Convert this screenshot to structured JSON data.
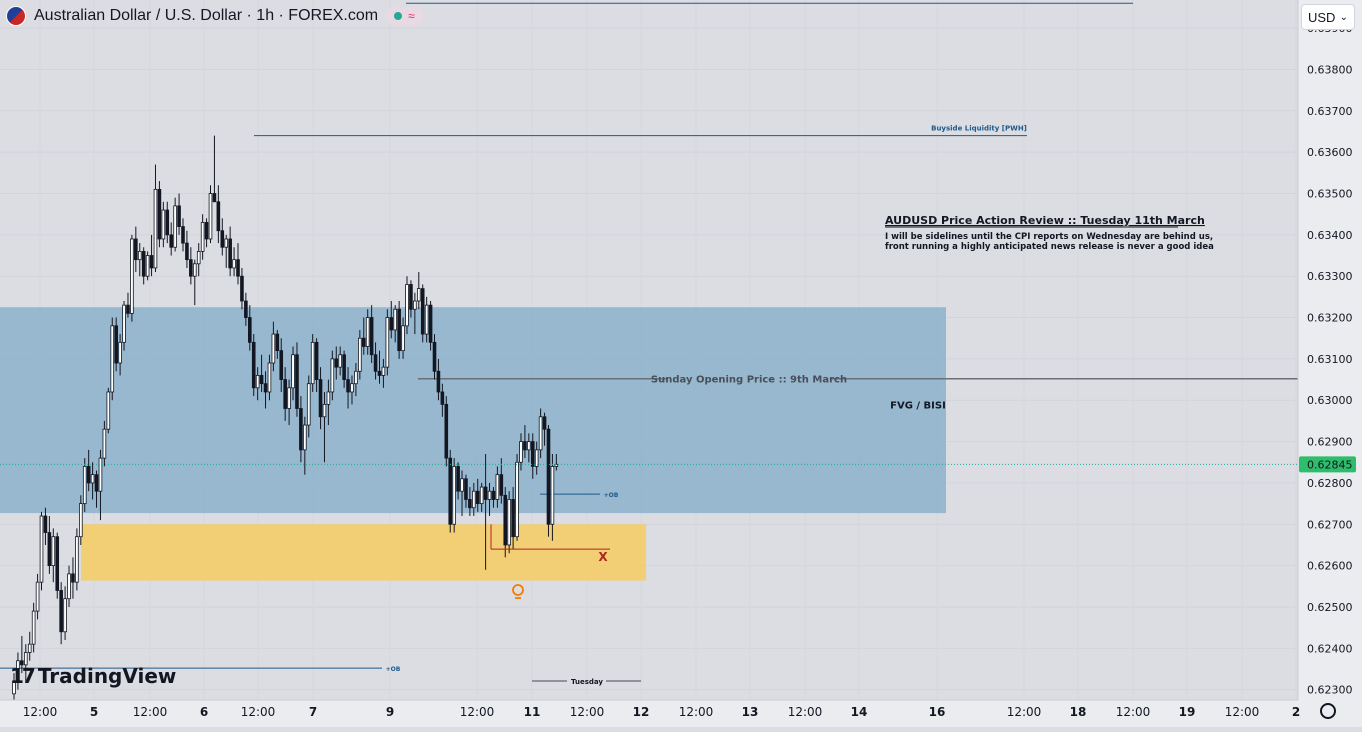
{
  "header": {
    "title": "Australian Dollar / U.S. Dollar · 1h · FOREX.com",
    "currency": "USD",
    "brand": "TradingView"
  },
  "chart_data": {
    "type": "candlestick",
    "price_axis": {
      "min": 0.62275,
      "max": 0.63968,
      "ticks": [
        "0.63900",
        "0.63800",
        "0.63700",
        "0.63600",
        "0.63500",
        "0.63400",
        "0.63300",
        "0.63200",
        "0.63100",
        "0.63000",
        "0.62900",
        "0.62800",
        "0.62700",
        "0.62600",
        "0.62500",
        "0.62400",
        "0.62300"
      ],
      "last_price": "0.62845"
    },
    "time_axis": {
      "labels": [
        "12:00",
        "5",
        "12:00",
        "6",
        "12:00",
        "7",
        "9",
        "12:00",
        "11",
        "12:00",
        "12",
        "12:00",
        "13",
        "12:00",
        "14",
        "16",
        "12:00",
        "18",
        "12:00",
        "19",
        "12:00",
        "2"
      ]
    },
    "zones": [
      {
        "name": "FVG / BISI",
        "label": "FVG / BISI",
        "top": 0.63225,
        "bottom": 0.62727,
        "color": "#8fb4cc"
      },
      {
        "name": "order-block-zone",
        "label": "",
        "top": 0.627,
        "bottom": 0.62564,
        "color": "#f2cc6e"
      }
    ],
    "levels": [
      {
        "label": "Buyside Liquidity",
        "price": 0.6396,
        "color": "#2962ff"
      },
      {
        "label": "Buyside Liquidity [PWH]",
        "price": 0.6364,
        "color": "#1e5a8a"
      },
      {
        "label": "Sunday Opening Price :: 9th March",
        "price": 0.63052,
        "color": "#6b6f78"
      },
      {
        "label": "+OB",
        "price": 0.62773,
        "color": "#2962ff"
      },
      {
        "label": "+OB",
        "price": 0.62352,
        "color": "#2962ff"
      }
    ],
    "annotations": {
      "review_title": "AUDUSD Price Action Review :: Tuesday 11th March",
      "review_line1": "I will be sidelines until the CPI reports on Wednesday are behind us,",
      "review_line2": "front running a highly anticipated news release is never a good idea",
      "x_mark": "X",
      "tuesday": "Tuesday"
    },
    "candles": [
      {
        "o": 0.6229,
        "h": 0.6234,
        "l": 0.62275,
        "c": 0.6232
      },
      {
        "o": 0.6232,
        "h": 0.6239,
        "l": 0.623,
        "c": 0.6237
      },
      {
        "o": 0.6237,
        "h": 0.6243,
        "l": 0.6234,
        "c": 0.6236
      },
      {
        "o": 0.6236,
        "h": 0.6241,
        "l": 0.6232,
        "c": 0.6239
      },
      {
        "o": 0.6239,
        "h": 0.6244,
        "l": 0.6237,
        "c": 0.6241
      },
      {
        "o": 0.6241,
        "h": 0.6251,
        "l": 0.6239,
        "c": 0.6249
      },
      {
        "o": 0.6249,
        "h": 0.6258,
        "l": 0.6247,
        "c": 0.6256
      },
      {
        "o": 0.6256,
        "h": 0.6273,
        "l": 0.6254,
        "c": 0.6272
      },
      {
        "o": 0.6272,
        "h": 0.6274,
        "l": 0.6265,
        "c": 0.6268
      },
      {
        "o": 0.6268,
        "h": 0.6272,
        "l": 0.6258,
        "c": 0.626
      },
      {
        "o": 0.626,
        "h": 0.6269,
        "l": 0.6256,
        "c": 0.6267
      },
      {
        "o": 0.6267,
        "h": 0.6268,
        "l": 0.6252,
        "c": 0.6254
      },
      {
        "o": 0.6254,
        "h": 0.6256,
        "l": 0.6241,
        "c": 0.6244
      },
      {
        "o": 0.6244,
        "h": 0.6255,
        "l": 0.6242,
        "c": 0.6252
      },
      {
        "o": 0.6252,
        "h": 0.626,
        "l": 0.625,
        "c": 0.6258
      },
      {
        "o": 0.6258,
        "h": 0.6262,
        "l": 0.6252,
        "c": 0.6256
      },
      {
        "o": 0.6256,
        "h": 0.6269,
        "l": 0.6254,
        "c": 0.6267
      },
      {
        "o": 0.6267,
        "h": 0.6277,
        "l": 0.6265,
        "c": 0.6275
      },
      {
        "o": 0.6275,
        "h": 0.6286,
        "l": 0.6273,
        "c": 0.6284
      },
      {
        "o": 0.6284,
        "h": 0.6288,
        "l": 0.6278,
        "c": 0.628
      },
      {
        "o": 0.628,
        "h": 0.6285,
        "l": 0.6276,
        "c": 0.6282
      },
      {
        "o": 0.6282,
        "h": 0.6283,
        "l": 0.6274,
        "c": 0.6278
      },
      {
        "o": 0.6278,
        "h": 0.6288,
        "l": 0.6271,
        "c": 0.6286
      },
      {
        "o": 0.6286,
        "h": 0.6295,
        "l": 0.6284,
        "c": 0.6293
      },
      {
        "o": 0.6293,
        "h": 0.6303,
        "l": 0.6292,
        "c": 0.6302
      },
      {
        "o": 0.6302,
        "h": 0.632,
        "l": 0.63,
        "c": 0.6318
      },
      {
        "o": 0.6318,
        "h": 0.632,
        "l": 0.6307,
        "c": 0.6309
      },
      {
        "o": 0.6309,
        "h": 0.6316,
        "l": 0.6306,
        "c": 0.6314
      },
      {
        "o": 0.6314,
        "h": 0.6324,
        "l": 0.6312,
        "c": 0.6323
      },
      {
        "o": 0.6323,
        "h": 0.6326,
        "l": 0.632,
        "c": 0.6321
      },
      {
        "o": 0.6321,
        "h": 0.634,
        "l": 0.6319,
        "c": 0.6339
      },
      {
        "o": 0.6339,
        "h": 0.6342,
        "l": 0.6331,
        "c": 0.6334
      },
      {
        "o": 0.6334,
        "h": 0.6338,
        "l": 0.633,
        "c": 0.6336
      },
      {
        "o": 0.6336,
        "h": 0.6337,
        "l": 0.6328,
        "c": 0.633
      },
      {
        "o": 0.633,
        "h": 0.6336,
        "l": 0.6329,
        "c": 0.6335
      },
      {
        "o": 0.6335,
        "h": 0.634,
        "l": 0.633,
        "c": 0.6332
      },
      {
        "o": 0.6332,
        "h": 0.6357,
        "l": 0.6331,
        "c": 0.6351
      },
      {
        "o": 0.6351,
        "h": 0.6353,
        "l": 0.6337,
        "c": 0.6339
      },
      {
        "o": 0.6339,
        "h": 0.6348,
        "l": 0.6337,
        "c": 0.6346
      },
      {
        "o": 0.6346,
        "h": 0.6348,
        "l": 0.6338,
        "c": 0.634
      },
      {
        "o": 0.634,
        "h": 0.6343,
        "l": 0.6335,
        "c": 0.6337
      },
      {
        "o": 0.6337,
        "h": 0.6349,
        "l": 0.6336,
        "c": 0.6347
      },
      {
        "o": 0.6347,
        "h": 0.635,
        "l": 0.634,
        "c": 0.6342
      },
      {
        "o": 0.6342,
        "h": 0.6344,
        "l": 0.6336,
        "c": 0.6338
      },
      {
        "o": 0.6338,
        "h": 0.6341,
        "l": 0.6332,
        "c": 0.6334
      },
      {
        "o": 0.6334,
        "h": 0.6337,
        "l": 0.6328,
        "c": 0.633
      },
      {
        "o": 0.633,
        "h": 0.6334,
        "l": 0.6323,
        "c": 0.6333
      },
      {
        "o": 0.6333,
        "h": 0.6338,
        "l": 0.633,
        "c": 0.6336
      },
      {
        "o": 0.6336,
        "h": 0.6345,
        "l": 0.6334,
        "c": 0.6343
      },
      {
        "o": 0.6343,
        "h": 0.6344,
        "l": 0.6337,
        "c": 0.6339
      },
      {
        "o": 0.6339,
        "h": 0.6352,
        "l": 0.6338,
        "c": 0.635
      },
      {
        "o": 0.635,
        "h": 0.6364,
        "l": 0.6348,
        "c": 0.6348
      },
      {
        "o": 0.6348,
        "h": 0.6352,
        "l": 0.6338,
        "c": 0.6341
      },
      {
        "o": 0.6341,
        "h": 0.6344,
        "l": 0.6335,
        "c": 0.6337
      },
      {
        "o": 0.6337,
        "h": 0.634,
        "l": 0.6332,
        "c": 0.6339
      },
      {
        "o": 0.6339,
        "h": 0.6342,
        "l": 0.633,
        "c": 0.6332
      },
      {
        "o": 0.6332,
        "h": 0.6337,
        "l": 0.633,
        "c": 0.6334
      },
      {
        "o": 0.6334,
        "h": 0.6338,
        "l": 0.6328,
        "c": 0.633
      },
      {
        "o": 0.633,
        "h": 0.6332,
        "l": 0.6322,
        "c": 0.6324
      },
      {
        "o": 0.6324,
        "h": 0.6326,
        "l": 0.6318,
        "c": 0.632
      },
      {
        "o": 0.632,
        "h": 0.6323,
        "l": 0.6312,
        "c": 0.6314
      },
      {
        "o": 0.6314,
        "h": 0.6316,
        "l": 0.6301,
        "c": 0.6303
      },
      {
        "o": 0.6303,
        "h": 0.6308,
        "l": 0.63,
        "c": 0.6306
      },
      {
        "o": 0.6306,
        "h": 0.6311,
        "l": 0.6302,
        "c": 0.6304
      },
      {
        "o": 0.6304,
        "h": 0.6307,
        "l": 0.6298,
        "c": 0.6302
      },
      {
        "o": 0.6302,
        "h": 0.6311,
        "l": 0.63,
        "c": 0.6309
      },
      {
        "o": 0.6309,
        "h": 0.6319,
        "l": 0.6307,
        "c": 0.6316
      },
      {
        "o": 0.6316,
        "h": 0.6317,
        "l": 0.631,
        "c": 0.6312
      },
      {
        "o": 0.6312,
        "h": 0.6315,
        "l": 0.6302,
        "c": 0.6305
      },
      {
        "o": 0.6305,
        "h": 0.6308,
        "l": 0.6295,
        "c": 0.6298
      },
      {
        "o": 0.6298,
        "h": 0.6305,
        "l": 0.6294,
        "c": 0.6303
      },
      {
        "o": 0.6303,
        "h": 0.6313,
        "l": 0.63,
        "c": 0.6311
      },
      {
        "o": 0.6311,
        "h": 0.6314,
        "l": 0.6296,
        "c": 0.6298
      },
      {
        "o": 0.6298,
        "h": 0.6301,
        "l": 0.6285,
        "c": 0.6288
      },
      {
        "o": 0.6288,
        "h": 0.6296,
        "l": 0.6282,
        "c": 0.6294
      },
      {
        "o": 0.6294,
        "h": 0.6306,
        "l": 0.6291,
        "c": 0.6304
      },
      {
        "o": 0.6304,
        "h": 0.6316,
        "l": 0.6302,
        "c": 0.6314
      },
      {
        "o": 0.6314,
        "h": 0.6315,
        "l": 0.6302,
        "c": 0.6305
      },
      {
        "o": 0.6305,
        "h": 0.6308,
        "l": 0.6293,
        "c": 0.6296
      },
      {
        "o": 0.6296,
        "h": 0.6302,
        "l": 0.6285,
        "c": 0.6299
      },
      {
        "o": 0.6299,
        "h": 0.6305,
        "l": 0.6294,
        "c": 0.6302
      },
      {
        "o": 0.6302,
        "h": 0.6312,
        "l": 0.63,
        "c": 0.631
      },
      {
        "o": 0.631,
        "h": 0.6313,
        "l": 0.6305,
        "c": 0.6308
      },
      {
        "o": 0.6308,
        "h": 0.6313,
        "l": 0.6306,
        "c": 0.6311
      },
      {
        "o": 0.6311,
        "h": 0.6312,
        "l": 0.6303,
        "c": 0.6305
      },
      {
        "o": 0.6305,
        "h": 0.6308,
        "l": 0.6298,
        "c": 0.6302
      },
      {
        "o": 0.6302,
        "h": 0.6306,
        "l": 0.6299,
        "c": 0.6304
      },
      {
        "o": 0.6304,
        "h": 0.6309,
        "l": 0.6301,
        "c": 0.6307
      },
      {
        "o": 0.6307,
        "h": 0.6317,
        "l": 0.6305,
        "c": 0.6315
      },
      {
        "o": 0.6315,
        "h": 0.632,
        "l": 0.6311,
        "c": 0.6313
      },
      {
        "o": 0.6313,
        "h": 0.6322,
        "l": 0.6311,
        "c": 0.632
      },
      {
        "o": 0.632,
        "h": 0.6323,
        "l": 0.6309,
        "c": 0.6311
      },
      {
        "o": 0.6311,
        "h": 0.6314,
        "l": 0.6305,
        "c": 0.6307
      },
      {
        "o": 0.6307,
        "h": 0.6312,
        "l": 0.6304,
        "c": 0.6306
      },
      {
        "o": 0.6306,
        "h": 0.631,
        "l": 0.6303,
        "c": 0.6308
      },
      {
        "o": 0.6308,
        "h": 0.6322,
        "l": 0.6306,
        "c": 0.632
      },
      {
        "o": 0.632,
        "h": 0.6324,
        "l": 0.6315,
        "c": 0.6317
      },
      {
        "o": 0.6317,
        "h": 0.6323,
        "l": 0.6314,
        "c": 0.6322
      },
      {
        "o": 0.6322,
        "h": 0.6324,
        "l": 0.631,
        "c": 0.6312
      },
      {
        "o": 0.6312,
        "h": 0.632,
        "l": 0.631,
        "c": 0.6318
      },
      {
        "o": 0.6318,
        "h": 0.633,
        "l": 0.6316,
        "c": 0.6328
      },
      {
        "o": 0.6328,
        "h": 0.6329,
        "l": 0.632,
        "c": 0.6322
      },
      {
        "o": 0.6322,
        "h": 0.6326,
        "l": 0.6316,
        "c": 0.6324
      },
      {
        "o": 0.6324,
        "h": 0.6331,
        "l": 0.6322,
        "c": 0.6327
      },
      {
        "o": 0.6327,
        "h": 0.6328,
        "l": 0.6314,
        "c": 0.6316
      },
      {
        "o": 0.6316,
        "h": 0.6325,
        "l": 0.6314,
        "c": 0.6323
      },
      {
        "o": 0.6323,
        "h": 0.6324,
        "l": 0.6312,
        "c": 0.6314
      },
      {
        "o": 0.6314,
        "h": 0.6316,
        "l": 0.6305,
        "c": 0.6307
      },
      {
        "o": 0.6307,
        "h": 0.631,
        "l": 0.63,
        "c": 0.6302
      },
      {
        "o": 0.6302,
        "h": 0.6304,
        "l": 0.6296,
        "c": 0.6299
      },
      {
        "o": 0.6299,
        "h": 0.6301,
        "l": 0.6284,
        "c": 0.6286
      },
      {
        "o": 0.6286,
        "h": 0.6288,
        "l": 0.6268,
        "c": 0.627
      },
      {
        "o": 0.627,
        "h": 0.6286,
        "l": 0.6268,
        "c": 0.6284
      },
      {
        "o": 0.6284,
        "h": 0.6285,
        "l": 0.6276,
        "c": 0.6278
      },
      {
        "o": 0.6278,
        "h": 0.6283,
        "l": 0.6272,
        "c": 0.6281
      },
      {
        "o": 0.6281,
        "h": 0.6282,
        "l": 0.6274,
        "c": 0.6276
      },
      {
        "o": 0.6276,
        "h": 0.6279,
        "l": 0.6272,
        "c": 0.6274
      },
      {
        "o": 0.6274,
        "h": 0.628,
        "l": 0.6272,
        "c": 0.6278
      },
      {
        "o": 0.6278,
        "h": 0.6281,
        "l": 0.6273,
        "c": 0.6275
      },
      {
        "o": 0.6275,
        "h": 0.628,
        "l": 0.6273,
        "c": 0.6279
      },
      {
        "o": 0.6279,
        "h": 0.6287,
        "l": 0.6259,
        "c": 0.6276
      },
      {
        "o": 0.6276,
        "h": 0.628,
        "l": 0.6272,
        "c": 0.6278
      },
      {
        "o": 0.6278,
        "h": 0.6279,
        "l": 0.6274,
        "c": 0.6276
      },
      {
        "o": 0.6276,
        "h": 0.6284,
        "l": 0.6274,
        "c": 0.6282
      },
      {
        "o": 0.6282,
        "h": 0.6286,
        "l": 0.6275,
        "c": 0.6277
      },
      {
        "o": 0.6277,
        "h": 0.6279,
        "l": 0.6262,
        "c": 0.6265
      },
      {
        "o": 0.6265,
        "h": 0.6278,
        "l": 0.6263,
        "c": 0.6276
      },
      {
        "o": 0.6276,
        "h": 0.6279,
        "l": 0.6264,
        "c": 0.6267
      },
      {
        "o": 0.6267,
        "h": 0.6287,
        "l": 0.6266,
        "c": 0.6285
      },
      {
        "o": 0.6285,
        "h": 0.6292,
        "l": 0.6283,
        "c": 0.629
      },
      {
        "o": 0.629,
        "h": 0.6294,
        "l": 0.6286,
        "c": 0.6288
      },
      {
        "o": 0.6288,
        "h": 0.6292,
        "l": 0.6285,
        "c": 0.629
      },
      {
        "o": 0.629,
        "h": 0.6292,
        "l": 0.6281,
        "c": 0.6284
      },
      {
        "o": 0.6284,
        "h": 0.629,
        "l": 0.6282,
        "c": 0.6288
      },
      {
        "o": 0.6288,
        "h": 0.6298,
        "l": 0.6286,
        "c": 0.6296
      },
      {
        "o": 0.6296,
        "h": 0.6297,
        "l": 0.6289,
        "c": 0.6293
      },
      {
        "o": 0.6293,
        "h": 0.6294,
        "l": 0.6267,
        "c": 0.627
      },
      {
        "o": 0.627,
        "h": 0.6287,
        "l": 0.6266,
        "c": 0.6284
      },
      {
        "o": 0.6284,
        "h": 0.6287,
        "l": 0.6283,
        "c": 0.62845
      }
    ]
  }
}
